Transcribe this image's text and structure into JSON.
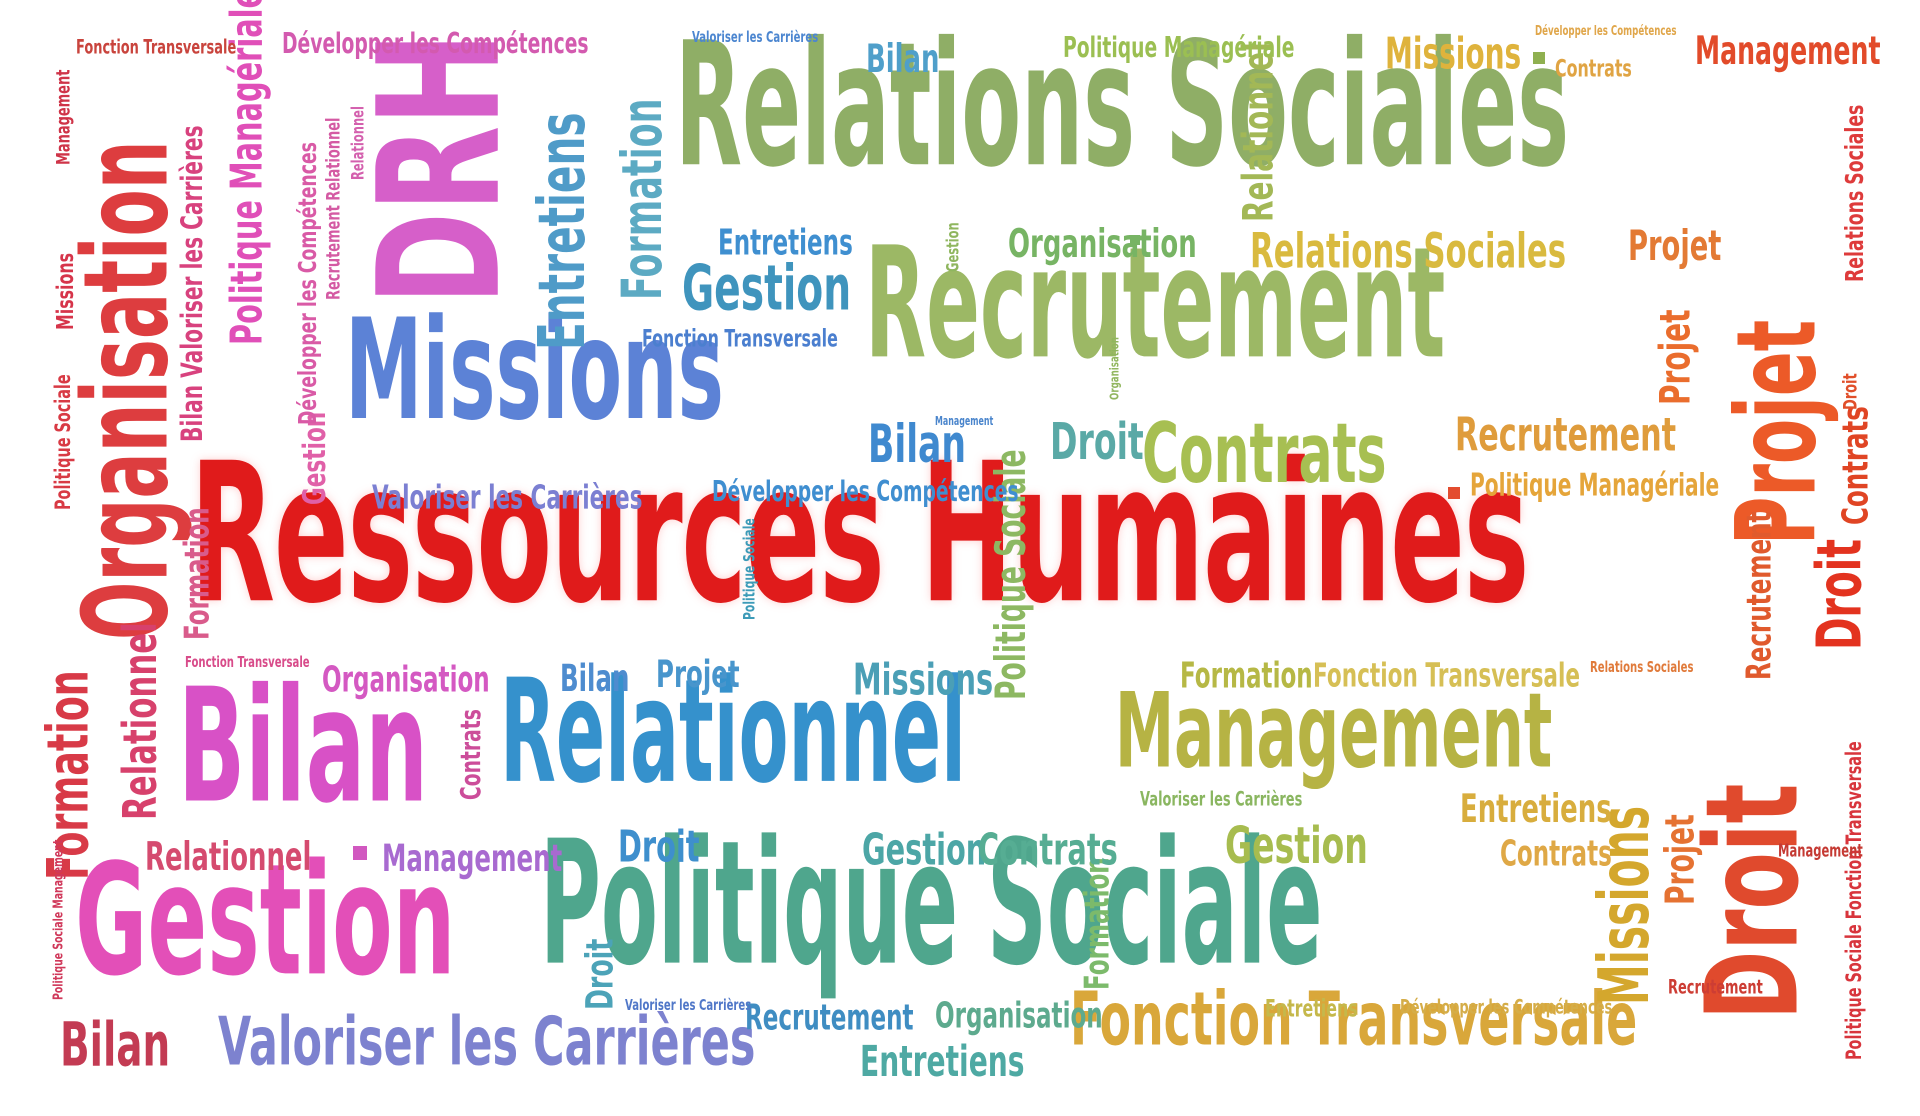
{
  "colors": {
    "red": "#e01b1b",
    "crimson": "#d2292d",
    "orange_red": "#e0553a",
    "orange": "#e98a35",
    "amber": "#e3b23b",
    "olive": "#b9b744",
    "yellow_green": "#a6bf4c",
    "green": "#7db966",
    "teal": "#4ea88d",
    "cyan_blue": "#3b8fcb",
    "blue": "#4b7ed6",
    "periwinkle": "#7c7fd1",
    "violet": "#b061c8",
    "magenta": "#e54fbe",
    "pink": "#e86aa4",
    "rose": "#d7476a",
    "maroon": "#b23c3c"
  },
  "words": {
    "ressources_humaines": "Ressources Humaines",
    "relations_sociales_big": "Relations Sociales",
    "recrutement_big": "Recrutement",
    "missions_big": "Missions",
    "organisation_big": "Organisation",
    "drh": "DRH",
    "bilan_big": "Bilan",
    "gestion_big": "Gestion",
    "relationnel_big": "Relationnel",
    "politique_sociale_big": "Politique Sociale",
    "management_big": "Management",
    "fonction_transversale_big": "Fonction Transversale",
    "valoriser_big": "Valoriser les Carrières",
    "droit_big": "Droit",
    "projet_big": "Projet",
    "contrats_mid": "Contrats",
    "entretiens_v": "Entretiens",
    "formation_v": "Formation",
    "gestion_mid": "Gestion",
    "missions_v": "Missions",
    "bilan_bottom": "Bilan",
    "entretiens_bottom": "Entretiens",
    "recrutement_small": "Recrutement",
    "organisation_small": "Organisation",
    "relations_sociales_small": "Relations Sociales",
    "politique_manageriale_v": "Politique Managériale",
    "developper_top": "Développer les Compétences",
    "fonction_transversale_top": "Fonction Transversale",
    "valoriser_small": "Valoriser les Carrières",
    "bilan_small": "Bilan",
    "missions_small": "Missions",
    "management_top": "Management",
    "contrats_top": "Contrats",
    "politique_manageriale_top": "Politique Managériale",
    "entretiens_small": "Entretiens",
    "fonction_transversale_small": "Fonction Transversale",
    "developper_small": "Développer les Compétences",
    "droit_small": "Droit",
    "formation_small": "Formation",
    "fonction_transversale_mid": "Fonction Transversale",
    "projet_small": "Projet",
    "recrutement_right": "Recrutement",
    "politique_manageriale_right": "Politique Managériale",
    "contrats_right": "Contrats",
    "droit_right": "Droit",
    "organisation_left": "Organisation",
    "relationnel_left": "Relationnel",
    "management_left": "Management",
    "valoriser_mid": "Valoriser les Carrières",
    "gestion_small": "Gestion",
    "contrats_small": "Contrats",
    "entretiens_right": "Entretiens",
    "contrats_r2": "Contrats",
    "projet_v": "Projet",
    "organisation_bottom": "Organisation",
    "recrutement_bottom": "Recrutement",
    "droit_bottom": "Droit",
    "entretiens_tiny": "Entretiens",
    "developper_tiny": "Développer les Compétences",
    "formation_v2": "Formation",
    "politique_sociale_v": "Politique Sociale",
    "relationnel_top_v": "Relationnel",
    "relations_sociales_v": "Relations Sociales",
    "politique_sociale_fonction_v": "Politique Sociale Fonction Transversale",
    "contrats_v_right": "Contrats",
    "droit_v_right": "Droit",
    "recrutement_v_right": "Recrutement",
    "missions_v_left": "Missions",
    "politique_sociale_v_left": "Politique Sociale",
    "management_v_left": "Management",
    "bilan_valoriser_v": "Bilan Valoriser les Carrières",
    "formation_v_left": "Formation",
    "formation_v_left2": "Formation",
    "relationnel_v_left": "Relationnel",
    "gestion_v_left": "Gestion",
    "developper_v_left": "Développer les Compétences",
    "recrutement_relationnel_v": "Recrutement Relationnel",
    "relationnel_v_small": "Relationnel",
    "management_tiny": "Management",
    "recrutement_tiny": "Recrutement",
    "contrats_v_left": "Contrats",
    "fonction_transversale_tiny": "Fonction Transversale",
    "bilan_tiny": "Bilan",
    "projet_tiny": "Projet",
    "missions_mid": "Missions",
    "droit_v_mid": "Droit",
    "valoriser_tiny": "Valoriser les Carrières",
    "recrutement_tiny2": "Recrutement",
    "droit_tiny": "Droit",
    "gestion_tiny": "Gestion",
    "politique_sociale_management_v": "Politique Sociale Management",
    "projet_v_bottom": "Projet",
    "management_right_small": "Management",
    "formation_tiny": "Formation",
    "fonction_transversale_tiny2": "Fonction Transversale",
    "relations_sociales_tiny": "Relations Sociales",
    "politique_manageriale_tiny": "Politique Managériale",
    "fonction_transversale_tiny3": "Fonction Transversale",
    "politique_sociale_tiny": "Politique Sociale",
    "developper_tiny2": "Développer les Compétences",
    "contrats_tiny": "Contrats",
    "politique_sociale_v2": "Politique Sociale",
    "gestion_v_tiny": "Gestion",
    "organisation_v_tiny": "Organisation"
  }
}
